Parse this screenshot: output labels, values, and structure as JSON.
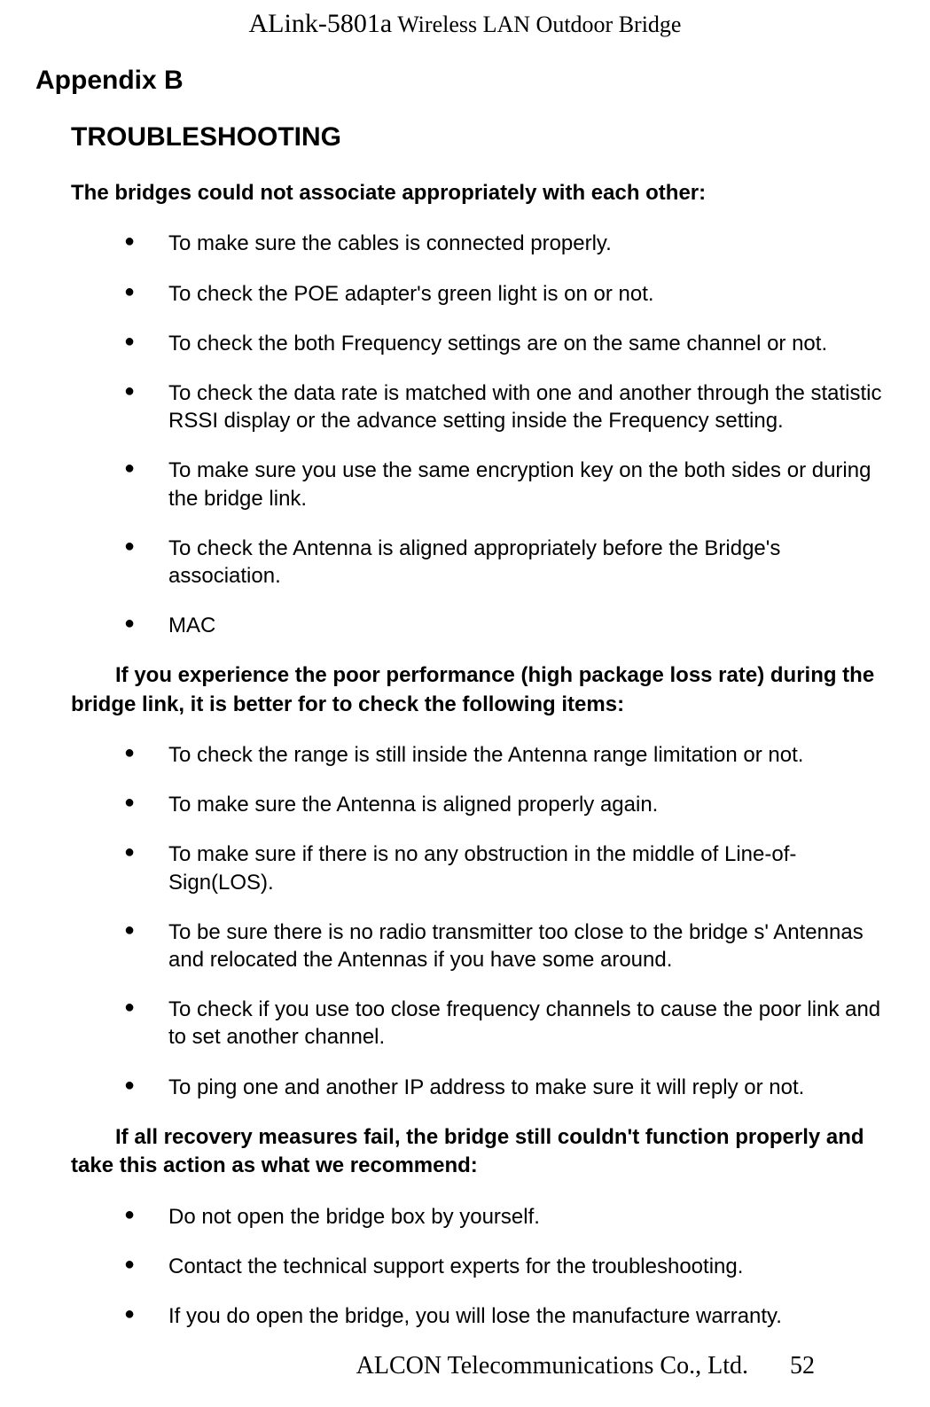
{
  "header": {
    "product": "ALink-5801a",
    "subtitle": "Wireless LAN Outdoor Bridge"
  },
  "appendix": "Appendix B",
  "section_title": "TROUBLESHOOTING",
  "groups": [
    {
      "heading": "The bridges could not associate appropriately with each other:",
      "heading_class": "sub-heading",
      "items": [
        "To make sure the cables is connected properly.",
        "To check the POE adapter's green light is on or not.",
        "To check the both Frequency settings are on the same channel or not.",
        "To check the data rate is matched with one and another through the statistic RSSI display or the advance setting inside the Frequency setting.",
        "To make sure you use the same encryption key on the both sides or during the bridge link.",
        "To check the Antenna is aligned appropriately before the Bridge's association.",
        "MAC"
      ]
    },
    {
      "heading": "If you experience the poor performance (high package loss rate) during the bridge link, it is better for to check the following items:",
      "heading_class": "sub-heading sub-heading-indent",
      "items": [
        "To check the range is still inside the Antenna range limitation or not.",
        "To make sure the Antenna is aligned properly again.",
        "To make sure if there is no any obstruction in the middle of Line-of-Sign(LOS).",
        "To be sure there is no radio transmitter too close to the bridge s' Antennas and relocated the Antennas if you have some around.",
        "To check if you use too close frequency channels to cause the poor link and to set another channel.",
        "To ping one and another IP address to make sure it will reply or not."
      ]
    },
    {
      "heading": "If all recovery measures fail, the bridge still couldn't function properly and take this action as what we recommend:",
      "heading_class": "sub-heading sub-heading-indent",
      "items": [
        "Do not open the bridge box by yourself.",
        "Contact the technical support experts for the troubleshooting.",
        "If you do open the bridge, you will lose the manufacture warranty."
      ]
    }
  ],
  "footer": {
    "company": "ALCON Telecommunications Co., Ltd.",
    "page": "52"
  }
}
